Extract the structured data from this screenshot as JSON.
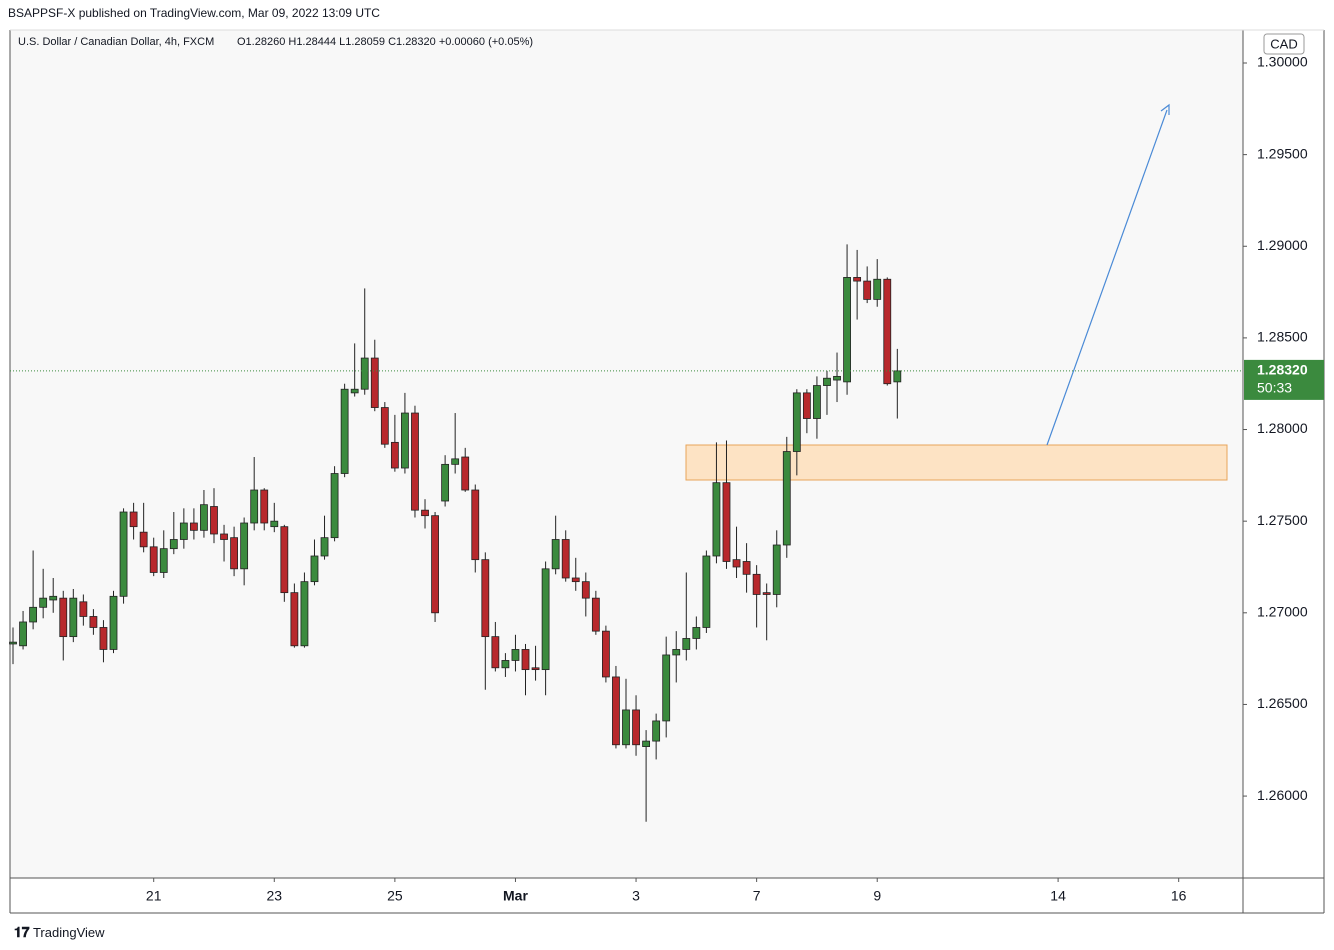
{
  "header": "BSAPPSF-X published on TradingView.com, Mar 09, 2022 13:09 UTC",
  "footer": "TradingView",
  "chart_data": {
    "type": "candlestick",
    "symbol": "U.S. Dollar / Canadian Dollar, 4h, FXCM",
    "ohlc_text": "O1.28260 H1.28444 L1.28059 C1.28320 +0.00060 (+0.05%)",
    "currency": "CAD",
    "last_price_label": "1.28320",
    "countdown": "50:33",
    "up_color": "#3b8a3e",
    "down_color": "#b8282c",
    "open": [
      1.2683,
      1.2682,
      1.2695,
      1.2703,
      1.2707,
      1.2708,
      1.2687,
      1.2706,
      1.2698,
      1.2692,
      1.268,
      1.2709,
      1.2755,
      1.2744,
      1.2736,
      1.2722,
      1.2735,
      1.274,
      1.2749,
      1.2745,
      1.2758,
      1.2743,
      1.2741,
      1.2724,
      1.2749,
      1.2767,
      1.2747,
      1.2747,
      1.2711,
      1.2682,
      1.2717,
      1.2731,
      1.2741,
      1.2776,
      1.282,
      1.2822,
      1.2839,
      1.2812,
      1.2793,
      1.2779,
      1.2809,
      1.2756,
      1.2753,
      1.2761,
      1.2781,
      1.2785,
      1.2767,
      1.2729,
      1.2687,
      1.267,
      1.2674,
      1.268,
      1.267,
      1.2669,
      1.2724,
      1.274,
      1.2719,
      1.2717,
      1.2708,
      1.269,
      1.2665,
      1.2628,
      1.2647,
      1.2627,
      1.263,
      1.2641,
      1.2677,
      1.268,
      1.2686,
      1.2692,
      1.2731,
      1.2771,
      1.2729,
      1.2728,
      1.2721,
      1.2711,
      1.271,
      1.2737,
      1.2788,
      1.282,
      1.2806,
      1.2824,
      1.2827,
      1.2826,
      1.2883,
      1.2881,
      1.2871,
      1.2882,
      1.2826
    ],
    "high": [
      1.2692,
      1.2701,
      1.2734,
      1.2724,
      1.2719,
      1.2712,
      1.2713,
      1.271,
      1.2702,
      1.2696,
      1.2712,
      1.2757,
      1.276,
      1.276,
      1.2741,
      1.2745,
      1.2755,
      1.2757,
      1.2757,
      1.2767,
      1.2768,
      1.2748,
      1.2747,
      1.2752,
      1.2785,
      1.2768,
      1.276,
      1.2748,
      1.2716,
      1.2722,
      1.274,
      1.2753,
      1.278,
      1.2825,
      1.2847,
      1.2877,
      1.2849,
      1.2815,
      1.2808,
      1.282,
      1.2813,
      1.2762,
      1.2755,
      1.2786,
      1.2809,
      1.279,
      1.277,
      1.2733,
      1.2695,
      1.2678,
      1.2688,
      1.2683,
      1.2682,
      1.2728,
      1.2753,
      1.2745,
      1.273,
      1.2722,
      1.2712,
      1.2693,
      1.2671,
      1.2664,
      1.2655,
      1.2636,
      1.2645,
      1.2687,
      1.269,
      1.2722,
      1.2698,
      1.2734,
      1.2793,
      1.2794,
      1.2747,
      1.2738,
      1.2726,
      1.2716,
      1.2745,
      1.2796,
      1.2822,
      1.2822,
      1.2829,
      1.2832,
      1.2842,
      1.2901,
      1.2898,
      1.2889,
      1.2893,
      1.2883,
      1.2844
    ],
    "low": [
      1.2672,
      1.268,
      1.2691,
      1.2697,
      1.27,
      1.2674,
      1.2684,
      1.2693,
      1.2688,
      1.2673,
      1.2678,
      1.2705,
      1.274,
      1.2733,
      1.272,
      1.2719,
      1.2732,
      1.2735,
      1.274,
      1.2741,
      1.2738,
      1.2728,
      1.272,
      1.2715,
      1.2745,
      1.2745,
      1.2744,
      1.2706,
      1.2681,
      1.2681,
      1.2715,
      1.2729,
      1.2739,
      1.2774,
      1.2818,
      1.2819,
      1.281,
      1.279,
      1.2777,
      1.2776,
      1.2752,
      1.2746,
      1.2695,
      1.2758,
      1.2776,
      1.2766,
      1.2722,
      1.2658,
      1.2668,
      1.2665,
      1.2668,
      1.2655,
      1.2663,
      1.2655,
      1.2721,
      1.2717,
      1.2712,
      1.2698,
      1.2688,
      1.2662,
      1.2626,
      1.2626,
      1.2622,
      1.2586,
      1.262,
      1.2632,
      1.2662,
      1.2674,
      1.268,
      1.2689,
      1.2727,
      1.2724,
      1.2719,
      1.2711,
      1.2692,
      1.2685,
      1.2703,
      1.273,
      1.2775,
      1.2798,
      1.2795,
      1.2808,
      1.2815,
      1.2819,
      1.286,
      1.2869,
      1.2867,
      1.2824,
      1.2806
    ],
    "close": [
      1.2684,
      1.2695,
      1.2703,
      1.2708,
      1.2709,
      1.2687,
      1.2708,
      1.2698,
      1.2692,
      1.268,
      1.2709,
      1.2755,
      1.2747,
      1.2736,
      1.2722,
      1.2735,
      1.274,
      1.2749,
      1.2745,
      1.2759,
      1.2743,
      1.274,
      1.2724,
      1.2749,
      1.2767,
      1.2749,
      1.275,
      1.2711,
      1.2682,
      1.2717,
      1.2731,
      1.2741,
      1.2776,
      1.2822,
      1.2822,
      1.2839,
      1.2812,
      1.2792,
      1.2779,
      1.2809,
      1.2756,
      1.2753,
      1.27,
      1.2781,
      1.2784,
      1.2767,
      1.2729,
      1.2687,
      1.267,
      1.2674,
      1.268,
      1.2669,
      1.2669,
      1.2724,
      1.274,
      1.2719,
      1.2717,
      1.2708,
      1.269,
      1.2665,
      1.2628,
      1.2647,
      1.2628,
      1.263,
      1.2641,
      1.2677,
      1.268,
      1.2686,
      1.2692,
      1.2731,
      1.2771,
      1.2728,
      1.2725,
      1.2721,
      1.271,
      1.271,
      1.2737,
      1.2788,
      1.282,
      1.2806,
      1.2824,
      1.2828,
      1.2829,
      1.2883,
      1.2881,
      1.2871,
      1.2882,
      1.2825,
      1.2832
    ],
    "xlim": [
      -0.3,
      122.4
    ],
    "xticks": [
      {
        "value": 14,
        "label": "21"
      },
      {
        "value": 26,
        "label": "23"
      },
      {
        "value": 38,
        "label": "25"
      },
      {
        "value": 50,
        "label": "Mar"
      },
      {
        "value": 62,
        "label": "3"
      },
      {
        "value": 74,
        "label": "7"
      },
      {
        "value": 86,
        "label": "9"
      },
      {
        "value": 104,
        "label": "14"
      },
      {
        "value": 116,
        "label": "16"
      }
    ],
    "ylim": [
      1.25553,
      1.3018
    ],
    "yticks": [
      {
        "value": 1.26,
        "label": "1.26000"
      },
      {
        "value": 1.265,
        "label": "1.26500"
      },
      {
        "value": 1.27,
        "label": "1.27000"
      },
      {
        "value": 1.275,
        "label": "1.27500"
      },
      {
        "value": 1.28,
        "label": "1.28000"
      },
      {
        "value": 1.285,
        "label": "1.28500"
      },
      {
        "value": 1.29,
        "label": "1.29000"
      },
      {
        "value": 1.295,
        "label": "1.29500"
      },
      {
        "value": 1.3,
        "label": "1.30000"
      }
    ]
  }
}
